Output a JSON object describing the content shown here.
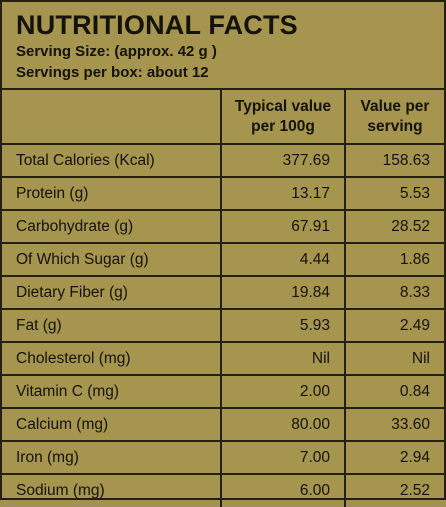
{
  "header": {
    "title": "NUTRITIONAL FACTS",
    "serving_size": "Serving Size: (approx. 42 g )",
    "servings_per_box": "Servings per box: about 12"
  },
  "columns": {
    "nutrient": "",
    "per_100g": "Typical value per 100g",
    "per_serving": "Value per serving"
  },
  "rows": [
    {
      "nutrient": "Total Calories (Kcal)",
      "per_100g": "377.69",
      "per_serving": "158.63"
    },
    {
      "nutrient": "Protein (g)",
      "per_100g": "13.17",
      "per_serving": "5.53"
    },
    {
      "nutrient": "Carbohydrate (g)",
      "per_100g": "67.91",
      "per_serving": "28.52"
    },
    {
      "nutrient": "Of Which Sugar (g)",
      "per_100g": "4.44",
      "per_serving": "1.86"
    },
    {
      "nutrient": "Dietary Fiber (g)",
      "per_100g": "19.84",
      "per_serving": "8.33"
    },
    {
      "nutrient": "Fat (g)",
      "per_100g": "5.93",
      "per_serving": "2.49"
    },
    {
      "nutrient": "Cholesterol (mg)",
      "per_100g": "Nil",
      "per_serving": "Nil"
    },
    {
      "nutrient": "Vitamin C (mg)",
      "per_100g": "2.00",
      "per_serving": "0.84"
    },
    {
      "nutrient": "Calcium (mg)",
      "per_100g": "80.00",
      "per_serving": "33.60"
    },
    {
      "nutrient": "Iron (mg)",
      "per_100g": "7.00",
      "per_serving": "2.94"
    },
    {
      "nutrient": "Sodium (mg)",
      "per_100g": "6.00",
      "per_serving": "2.52"
    }
  ],
  "colors": {
    "background": "#a6954f",
    "ink": "#15120a",
    "rule": "#231f12"
  }
}
